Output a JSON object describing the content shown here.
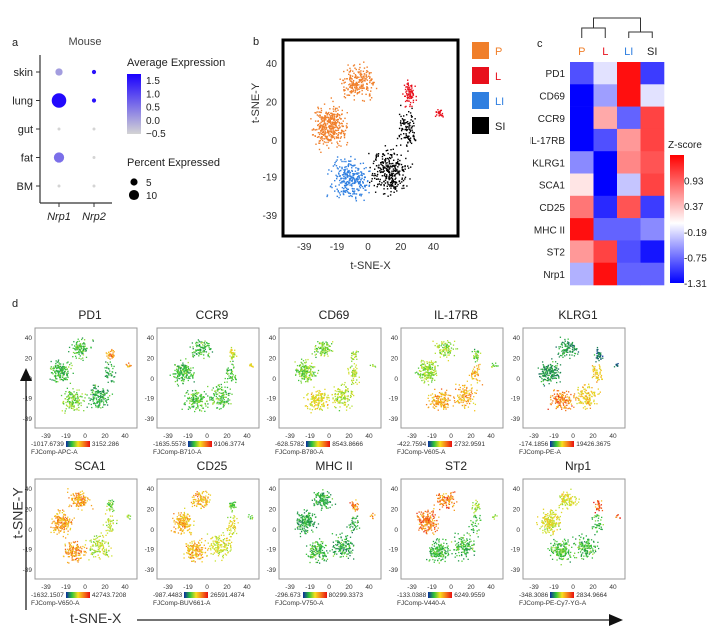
{
  "panel_labels": {
    "a": "a",
    "b": "b",
    "c": "c",
    "d": "d"
  },
  "colors": {
    "P": "#f07f2a",
    "L": "#e8101c",
    "LI": "#2f7fe0",
    "SI": "#000000",
    "dot_high": "#1a00ff",
    "dot_low": "#d4d4d4",
    "hm_high": "#ff0000",
    "hm_mid": "#ffffff",
    "hm_low": "#0000ff"
  },
  "chart_data": [
    {
      "type": "scatter",
      "id": "a",
      "title": "Mouse",
      "rows": [
        "skin",
        "lung",
        "gut",
        "fat",
        "BM"
      ],
      "columns": [
        "Nrp1",
        "Nrp2"
      ],
      "avg_expression": [
        [
          0.0,
          1.5
        ],
        [
          1.6,
          1.5
        ],
        [
          -0.6,
          -0.6
        ],
        [
          0.5,
          -0.6
        ],
        [
          -0.6,
          -0.6
        ]
      ],
      "percent_expressed": [
        [
          3,
          1
        ],
        [
          12,
          1
        ],
        [
          0.5,
          0.5
        ],
        [
          6,
          0.5
        ],
        [
          0.5,
          0.5
        ]
      ],
      "color_legend": {
        "title": "Average Expression",
        "ticks": [
          "1.5",
          "1.0",
          "0.5",
          "0.0",
          "−0.5"
        ],
        "range": [
          -0.6,
          1.7
        ]
      },
      "size_legend": {
        "title": "Percent Expressed",
        "values": [
          5,
          10
        ],
        "labels": [
          "5",
          "10"
        ]
      }
    },
    {
      "type": "scatter",
      "id": "b",
      "xlabel": "t-SNE-X",
      "ylabel": "t-SNE-Y",
      "xticks": [
        "-39",
        "-19",
        "0",
        "20",
        "40"
      ],
      "yticks": [
        "40",
        "20",
        "0",
        "-19",
        "-39"
      ],
      "xlim": [
        -52,
        55
      ],
      "ylim": [
        -50,
        52
      ],
      "legend": [
        {
          "key": "P",
          "label": "P"
        },
        {
          "key": "L",
          "label": "L"
        },
        {
          "key": "LI",
          "label": "LI"
        },
        {
          "key": "SI",
          "label": "SI"
        }
      ],
      "legend_position": "right"
    },
    {
      "type": "heatmap",
      "id": "c",
      "columns": [
        "P",
        "L",
        "LI",
        "SI"
      ],
      "rows": [
        "PD1",
        "CD69",
        "CCR9",
        "IL-17RB",
        "KLRG1",
        "SCA1",
        "CD25",
        "MHC II",
        "ST2",
        "Nrp1"
      ],
      "values": [
        [
          -0.9,
          -0.15,
          1.4,
          -1.0
        ],
        [
          -1.3,
          -0.5,
          1.4,
          -0.15
        ],
        [
          -1.3,
          0.5,
          -0.8,
          1.1
        ],
        [
          -1.3,
          -0.9,
          0.6,
          1.1
        ],
        [
          -0.6,
          -1.31,
          0.7,
          1.0
        ],
        [
          0.15,
          -1.31,
          -0.3,
          1.1
        ],
        [
          0.8,
          -1.1,
          1.0,
          -1.0
        ],
        [
          1.4,
          -0.8,
          -0.8,
          -0.6
        ],
        [
          0.6,
          1.1,
          -0.9,
          -1.2
        ],
        [
          -0.4,
          1.4,
          -0.8,
          -0.8
        ]
      ],
      "colorbar": {
        "title": "Z-score",
        "ticks": [
          "0.93",
          "0.37",
          "-0.19",
          "-0.75",
          "-1.31"
        ],
        "tick_values": [
          0.93,
          0.37,
          -0.19,
          -0.75,
          -1.31
        ],
        "range": [
          -1.31,
          1.49
        ]
      },
      "dendrogram": "((P,L),(LI,SI))"
    },
    {
      "type": "scatter",
      "id": "d",
      "xlabel": "t-SNE-X",
      "ylabel": "t-SNE-Y",
      "xticks": [
        "-39",
        "-19",
        "0",
        "20",
        "40"
      ],
      "yticks": [
        "40",
        "20",
        "0",
        "-19",
        "-39"
      ],
      "cluster_order": [
        "P",
        "L",
        "LI",
        "SI"
      ],
      "panels": [
        {
          "title": "PD1",
          "min": "-1017.6739",
          "max": "3152.286",
          "channel": "FJComp-APC-A",
          "levels": [
            0.35,
            0.8,
            0.45,
            0.3
          ]
        },
        {
          "title": "CCR9",
          "min": "-1635.5578",
          "max": "9106.3774",
          "channel": "FJComp-B710-A",
          "levels": [
            0.35,
            0.6,
            0.38,
            0.38
          ]
        },
        {
          "title": "CD69",
          "min": "-628.5782",
          "max": "8543.8666",
          "channel": "FJComp-B780-A",
          "levels": [
            0.45,
            0.5,
            0.65,
            0.55
          ]
        },
        {
          "title": "IL-17RB",
          "min": "-422.7594",
          "max": "2732.9591",
          "channel": "FJComp-V605-A",
          "levels": [
            0.5,
            0.45,
            0.78,
            0.75
          ]
        },
        {
          "title": "KLRG1",
          "min": "-174.1856",
          "max": "19426.3675",
          "channel": "FJComp-PE-A",
          "levels": [
            0.25,
            0.15,
            0.85,
            0.7
          ]
        },
        {
          "title": "SCA1",
          "min": "-1632.1507",
          "max": "42743.7208",
          "channel": "FJComp-V650-A",
          "levels": [
            0.78,
            0.45,
            0.8,
            0.55
          ]
        },
        {
          "title": "CD25",
          "min": "-987.4483",
          "max": "26591.4874",
          "channel": "FJComp-BUV661-A",
          "levels": [
            0.75,
            0.4,
            0.75,
            0.6
          ]
        },
        {
          "title": "MHC II",
          "min": "-296.673",
          "max": "80299.3373",
          "channel": "FJComp-V750-A",
          "levels": [
            0.3,
            0.85,
            0.35,
            0.3
          ]
        },
        {
          "title": "ST2",
          "min": "-133.0388",
          "max": "6249.9559",
          "channel": "FJComp-V440-A",
          "levels": [
            0.85,
            0.5,
            0.35,
            0.35
          ]
        },
        {
          "title": "Nrp1",
          "min": "-348.3086",
          "max": "2834.9664",
          "channel": "FJComp-PE-Cy7-YG-A",
          "levels": [
            0.6,
            0.9,
            0.38,
            0.35
          ]
        }
      ]
    }
  ]
}
